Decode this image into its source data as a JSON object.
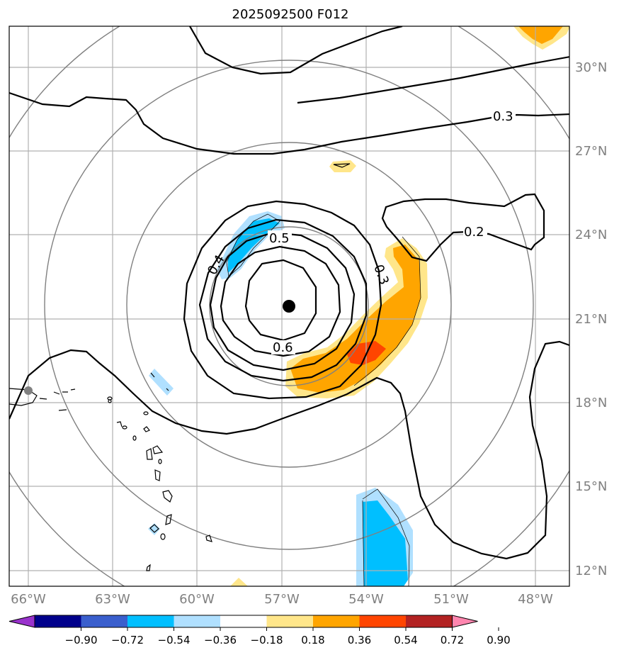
{
  "title": "2025092500 F012",
  "lat_labels": [
    "30°N",
    "27°N",
    "24°N",
    "21°N",
    "18°N",
    "15°N",
    "12°N"
  ],
  "lon_labels": [
    "66°W",
    "63°W",
    "60°W",
    "57°W",
    "54°W",
    "51°W",
    "48°W"
  ],
  "contour_labels": [
    "0.3",
    "0.2",
    "0.5",
    "0.4",
    "0.3",
    "0.6"
  ],
  "colorbar": {
    "ticks": [
      "−0.90",
      "−0.72",
      "−0.54",
      "−0.36",
      "−0.18",
      "0.18",
      "0.36",
      "0.54",
      "0.72",
      "0.90"
    ],
    "colors": [
      "#9932CC",
      "#00008B",
      "#3A5FCD",
      "#00BFFF",
      "#B0E0FF",
      "#FFFFFF",
      "#FFE68A",
      "#FFA500",
      "#FF4500",
      "#B22222",
      "#FF86AF"
    ]
  },
  "center_marker": "storm-center-dot"
}
